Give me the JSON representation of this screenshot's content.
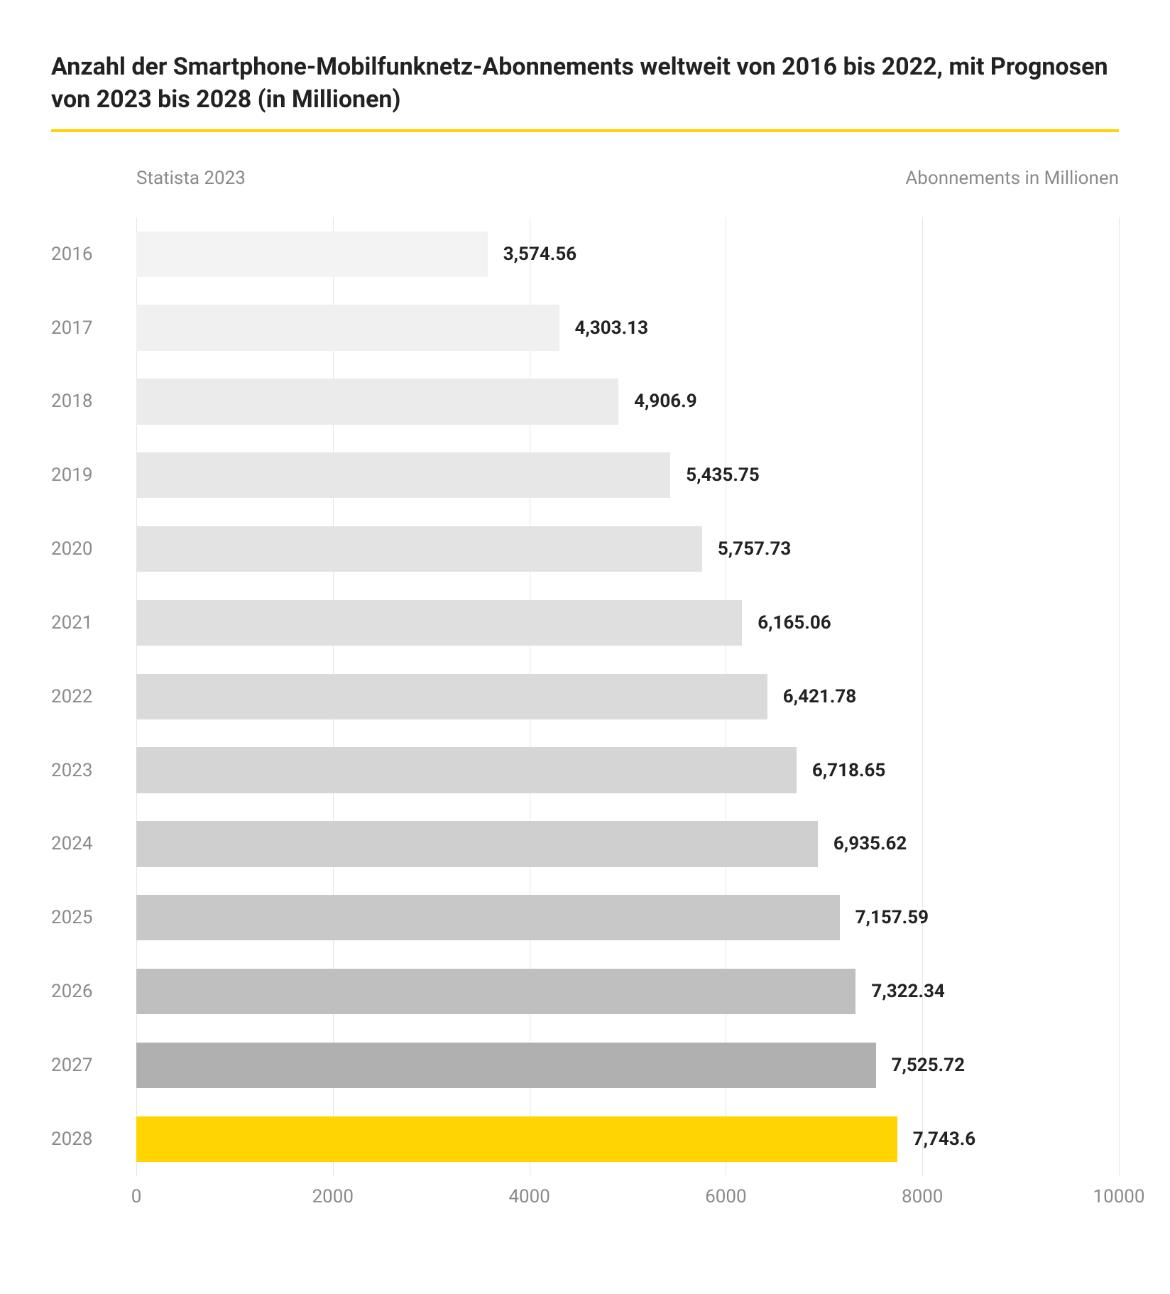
{
  "title": "Anzahl der Smartphone-Mobilfunknetz-Abonnements weltweit von 2016 bis 2022, mit Prognosen von 2023 bis 2028 (in Millionen)",
  "accent_color": "#ffd400",
  "subhead_left": "Statista 2023",
  "subhead_right": "Abonnements in Millionen",
  "chart": {
    "type": "bar-horizontal",
    "xlim": [
      0,
      10000
    ],
    "xticks": [
      0,
      2000,
      4000,
      6000,
      8000,
      10000
    ],
    "grid_color": "#e5e5e5",
    "background_color": "#ffffff",
    "ylabel_color": "#8a8a8a",
    "value_label_color": "#222222",
    "value_label_fontweight": "700",
    "label_fontsize": 26,
    "title_fontsize": 34,
    "categories": [
      "2016",
      "2017",
      "2018",
      "2019",
      "2020",
      "2021",
      "2022",
      "2023",
      "2024",
      "2025",
      "2026",
      "2027",
      "2028"
    ],
    "values": [
      3574.56,
      4303.13,
      4906.9,
      5435.75,
      5757.73,
      6165.06,
      6421.78,
      6718.65,
      6935.62,
      7157.59,
      7322.34,
      7525.72,
      7743.6
    ],
    "value_labels": [
      "3,574.56",
      "4,303.13",
      "4,906.9",
      "5,435.75",
      "5,757.73",
      "6,165.06",
      "6,421.78",
      "6,718.65",
      "6,935.62",
      "7,157.59",
      "7,322.34",
      "7,525.72",
      "7,743.6"
    ],
    "bar_colors": [
      "#f3f3f3",
      "#f0f0f0",
      "#ebebeb",
      "#e7e7e7",
      "#e3e3e3",
      "#dfdfdf",
      "#dadada",
      "#d5d5d5",
      "#cfcfcf",
      "#c8c8c8",
      "#bfbfbf",
      "#b0b0b0",
      "#ffd400"
    ]
  }
}
